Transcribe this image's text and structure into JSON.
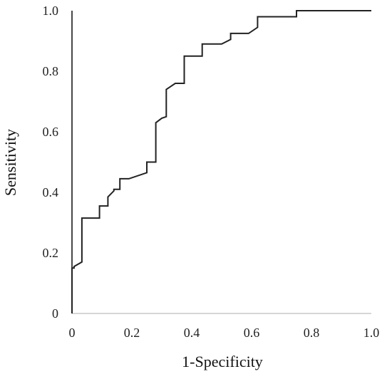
{
  "chart_data": {
    "type": "line",
    "title": "",
    "xlabel": "1-Specificity",
    "ylabel": "Sensitivity",
    "xlim": [
      0,
      1
    ],
    "ylim": [
      0,
      1
    ],
    "grid": false,
    "legend": "none",
    "x_ticks": [
      {
        "value": 0,
        "label": "0"
      },
      {
        "value": 0.2,
        "label": "0.2"
      },
      {
        "value": 0.4,
        "label": "0.4"
      },
      {
        "value": 0.6,
        "label": "0.6"
      },
      {
        "value": 0.8,
        "label": "0.8"
      },
      {
        "value": 1.0,
        "label": "1.0"
      }
    ],
    "y_ticks": [
      {
        "value": 0,
        "label": "0"
      },
      {
        "value": 0.2,
        "label": "0.2"
      },
      {
        "value": 0.4,
        "label": "0.4"
      },
      {
        "value": 0.6,
        "label": "0.6"
      },
      {
        "value": 0.8,
        "label": "0.8"
      },
      {
        "value": 1.0,
        "label": "1.0"
      }
    ],
    "series": [
      {
        "line_color": "#222222",
        "x": [
          0,
          0,
          0.007,
          0.007,
          0.033,
          0.033,
          0.092,
          0.092,
          0.12,
          0.12,
          0.14,
          0.14,
          0.16,
          0.16,
          0.19,
          0.25,
          0.25,
          0.28,
          0.28,
          0.3,
          0.3,
          0.315,
          0.315,
          0.33,
          0.345,
          0.375,
          0.375,
          0.4,
          0.435,
          0.435,
          0.5,
          0.53,
          0.53,
          0.59,
          0.62,
          0.62,
          0.75,
          0.75,
          1.0
        ],
        "y": [
          0,
          0.15,
          0.15,
          0.155,
          0.17,
          0.315,
          0.315,
          0.355,
          0.355,
          0.385,
          0.405,
          0.41,
          0.41,
          0.445,
          0.445,
          0.465,
          0.5,
          0.5,
          0.63,
          0.645,
          0.645,
          0.65,
          0.74,
          0.75,
          0.76,
          0.76,
          0.85,
          0.85,
          0.85,
          0.89,
          0.89,
          0.905,
          0.925,
          0.925,
          0.945,
          0.98,
          0.98,
          1.0,
          1.0
        ]
      }
    ]
  }
}
